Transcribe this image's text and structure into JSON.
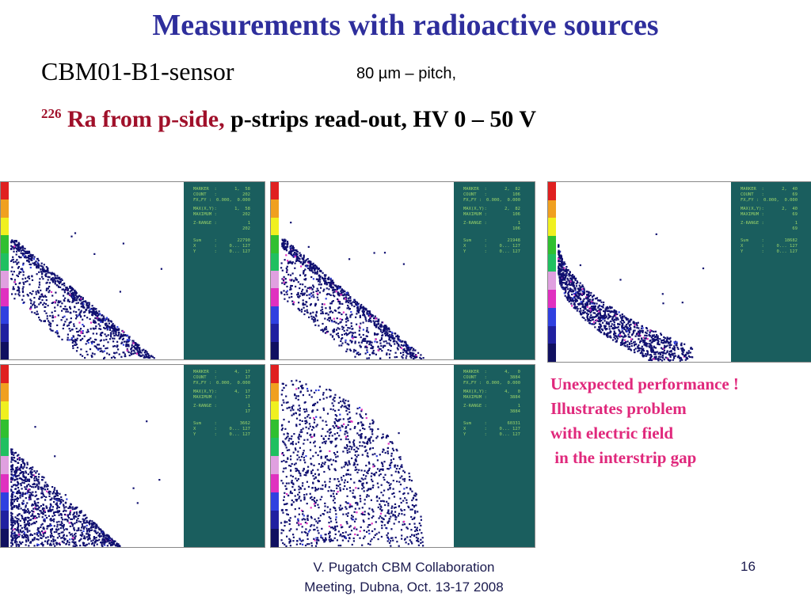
{
  "title": "Measurements with radioactive sources",
  "sensor": "CBM01-B1-sensor",
  "pitch": "80 µm – pitch,",
  "subtitle": {
    "isotope_mass": "226",
    "source": "Ra from p-side,",
    "rest": " p-strips read-out, HV 0 – 50 V"
  },
  "panels": [
    {
      "marker": "1,  58",
      "count": "202",
      "fxfy": "0.000,  0.000",
      "maxxy": "1,  58",
      "maximum": "202",
      "zrange_lo": "1",
      "zrange_hi": "202",
      "sum": "22790",
      "x": "0... 127",
      "y": "0... 127"
    },
    {
      "marker": "2,  82",
      "count": "106",
      "fxfy": "0.000,  0.000",
      "maxxy": "2,  82",
      "maximum": "106",
      "zrange_lo": "1",
      "zrange_hi": "106",
      "sum": "21948",
      "x": "0... 127",
      "y": "0... 127"
    },
    {
      "marker": "2,  40",
      "count": "69",
      "fxfy": "0.000,  0.000",
      "maxxy": "2,  40",
      "maximum": "69",
      "zrange_lo": "1",
      "zrange_hi": "69",
      "sum": "18682",
      "x": "0... 127",
      "y": "0... 127"
    },
    {
      "marker": "4,  17",
      "count": "17",
      "fxfy": "0.000,  0.000",
      "maxxy": "4,  17",
      "maximum": "17",
      "zrange_lo": "1",
      "zrange_hi": "17",
      "sum": "3662",
      "x": "0... 127",
      "y": "0... 127"
    },
    {
      "marker": "4,   0",
      "count": "3884",
      "fxfy": "0.000,  0.000",
      "maxxy": "4,   0",
      "maximum": "3884",
      "zrange_lo": "1",
      "zrange_hi": "3884",
      "sum": "60331",
      "x": "0... 127",
      "y": "0... 127"
    }
  ],
  "readout_labels": {
    "marker": "MARKER  :",
    "count": "COUNT   :",
    "fxfy": "FX,FY :",
    "maxxy": "MAX(X,Y):",
    "maximum": "MAXIMUM :",
    "zrange": "Z-RANGE :",
    "sum": "Sum     :",
    "x": "X       :",
    "y": "Y       :"
  },
  "note": {
    "line1": "Unexpected performance !",
    "line2": "Illustrates problem",
    "line3": "with electric field",
    "line4": " in  the interstrip gap"
  },
  "footer": {
    "line1": "V. Pugatch      CBM Collaboration",
    "line2": "Meeting, Dubna, Oct. 13-17 2008"
  },
  "page_number": "16",
  "colors": {
    "title": "#2e2e9c",
    "red": "#a0102a",
    "note": "#e0287c",
    "panel_bg": "#1a5e5e",
    "readout": "#9ad36a"
  }
}
